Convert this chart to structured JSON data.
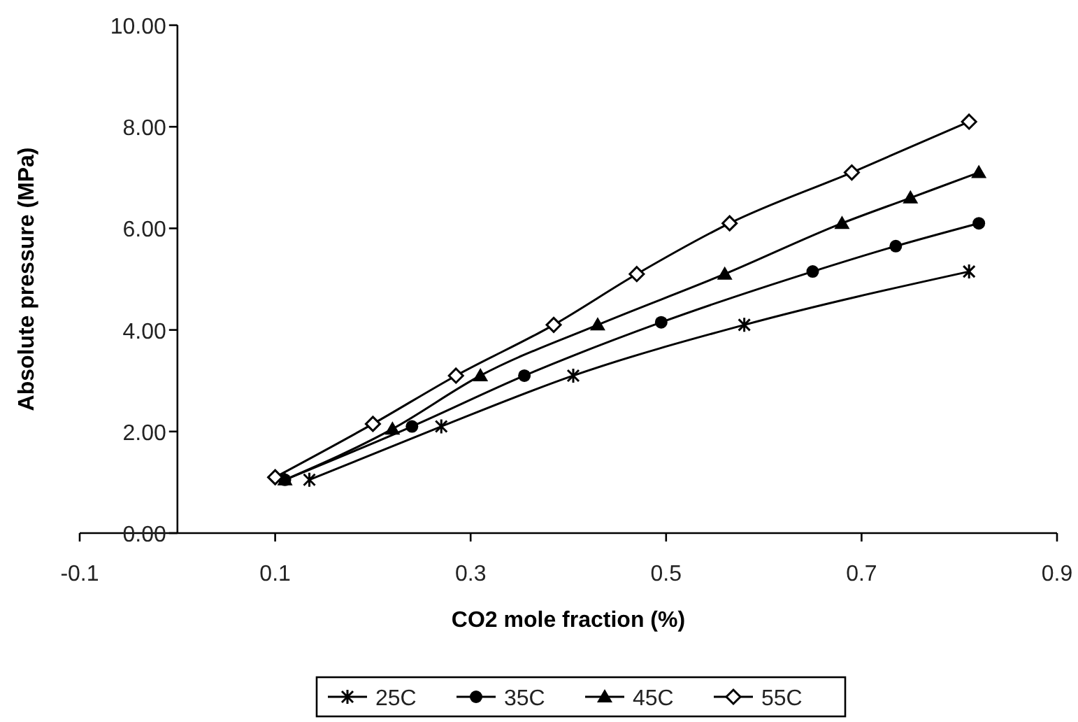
{
  "chart_data": {
    "type": "line",
    "xlabel": "CO2 mole fraction (%)",
    "ylabel": "Absolute pressure (MPa)",
    "xlim": [
      -0.1,
      0.9
    ],
    "xticks": [
      -0.1,
      0.1,
      0.3,
      0.5,
      0.7,
      0.9
    ],
    "ylim": [
      0,
      10
    ],
    "yticks": [
      {
        "value": 0,
        "label": "0.00"
      },
      {
        "value": 2,
        "label": "2.00"
      },
      {
        "value": 4,
        "label": "4.00"
      },
      {
        "value": 6,
        "label": "6.00"
      },
      {
        "value": 8,
        "label": "8.00"
      },
      {
        "value": 10,
        "label": "10.00"
      }
    ],
    "grid": false,
    "legend": "bottom",
    "line_style": "solid",
    "series": [
      {
        "name": "25C",
        "color": "#000000",
        "marker": "cross",
        "x": [
          0.135,
          0.27,
          0.405,
          0.58,
          0.81
        ],
        "values": [
          1.05,
          2.1,
          3.1,
          4.1,
          5.15
        ]
      },
      {
        "name": "35C",
        "color": "#000000",
        "marker": "circle",
        "x": [
          0.11,
          0.24,
          0.355,
          0.495,
          0.65,
          0.735,
          0.82
        ],
        "values": [
          1.05,
          2.1,
          3.1,
          4.15,
          5.15,
          5.65,
          6.1
        ]
      },
      {
        "name": "45C",
        "color": "#000000",
        "marker": "triangle",
        "x": [
          0.11,
          0.22,
          0.31,
          0.43,
          0.56,
          0.68,
          0.75,
          0.82
        ],
        "values": [
          1.05,
          2.05,
          3.1,
          4.1,
          5.1,
          6.1,
          6.6,
          7.1
        ]
      },
      {
        "name": "55C",
        "color": "#000000",
        "marker": "diamond",
        "x": [
          0.1,
          0.2,
          0.285,
          0.385,
          0.47,
          0.565,
          0.69,
          0.81
        ],
        "values": [
          1.1,
          2.15,
          3.1,
          4.1,
          5.1,
          6.1,
          7.1,
          8.1
        ]
      }
    ]
  }
}
